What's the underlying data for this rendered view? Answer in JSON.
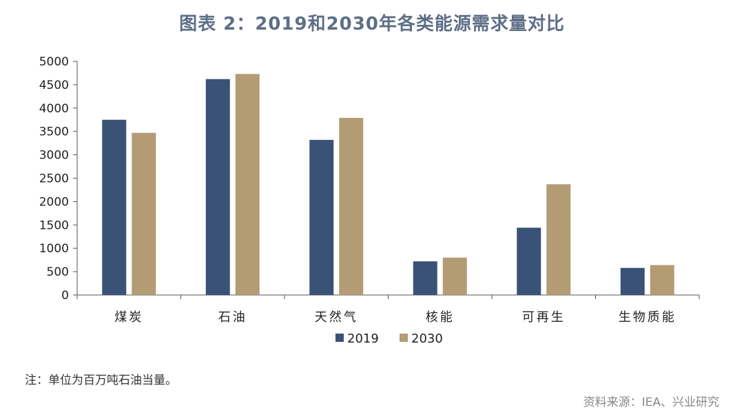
{
  "chart_data": {
    "type": "bar",
    "title": "图表 2：2019和2030年各类能源需求量对比",
    "categories": [
      "煤炭",
      "石油",
      "天然气",
      "核能",
      "可再生",
      "生物质能"
    ],
    "series": [
      {
        "name": "2019",
        "values": [
          3750,
          4620,
          3320,
          720,
          1440,
          580
        ],
        "color": "#3a5276"
      },
      {
        "name": "2030",
        "values": [
          3470,
          4730,
          3790,
          800,
          2370,
          640
        ],
        "color": "#b39b74"
      }
    ],
    "ylim": [
      0,
      5000
    ],
    "yticks": [
      0,
      500,
      1000,
      1500,
      2000,
      2500,
      3000,
      3500,
      4000,
      4500,
      5000
    ],
    "xlabel": "",
    "ylabel": "",
    "legend_position": "bottom",
    "grid": false
  },
  "note": "注：单位为百万吨石油当量。",
  "source": "资料来源：IEA、兴业研究"
}
